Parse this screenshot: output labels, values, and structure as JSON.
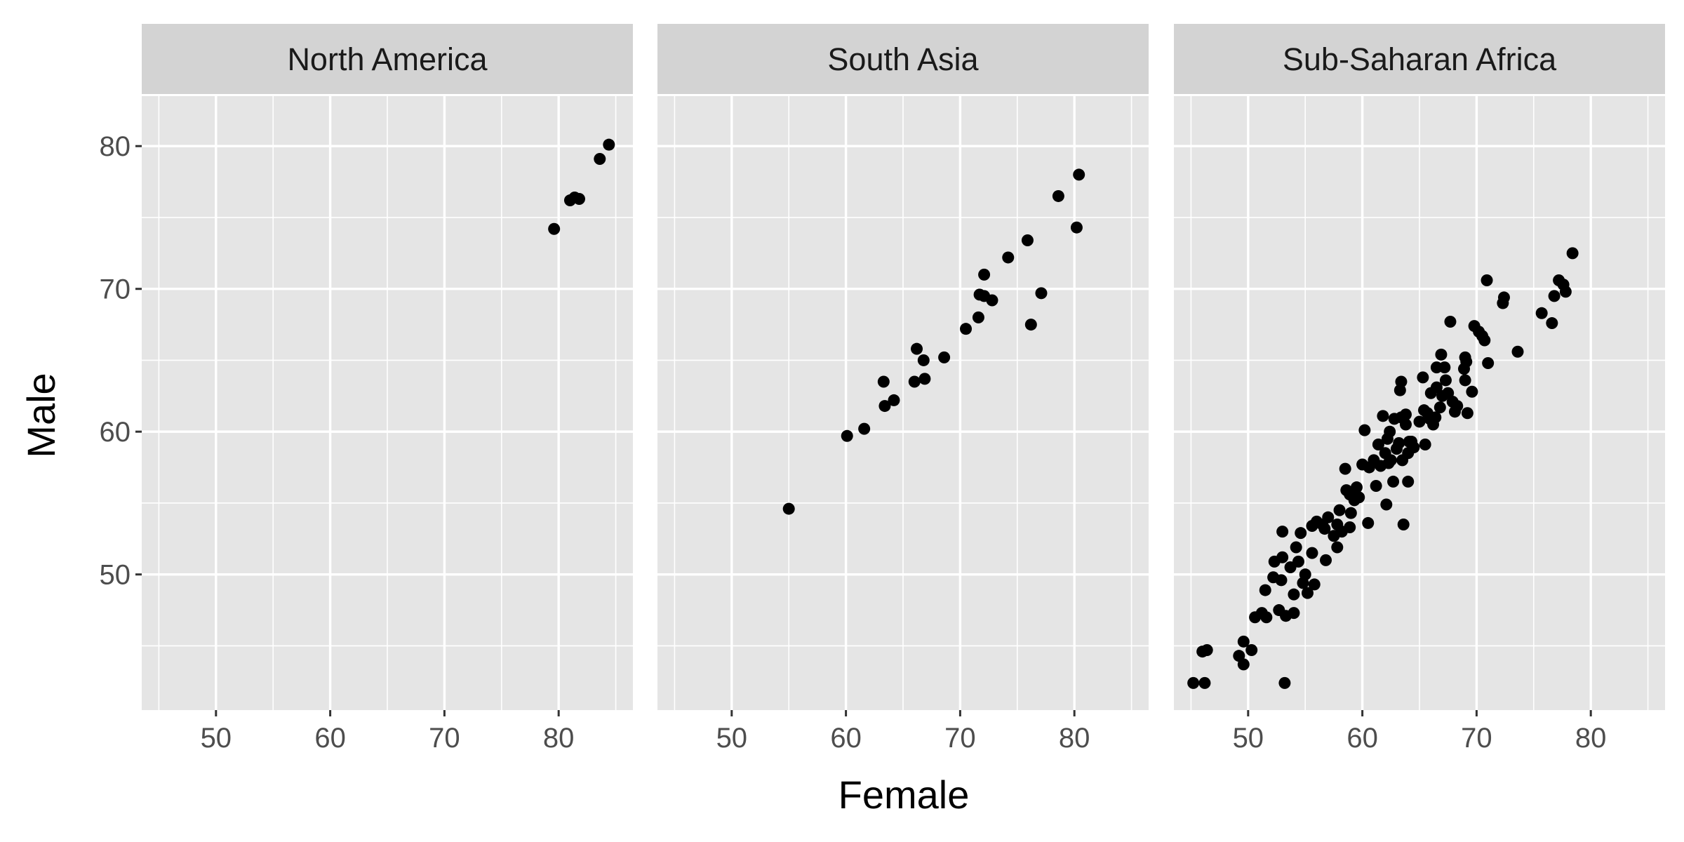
{
  "chart_data": {
    "type": "scatter",
    "xlabel": "Female",
    "ylabel": "Male",
    "xlim": [
      43.5,
      86.5
    ],
    "ylim": [
      40.5,
      83.5
    ],
    "x_ticks": [
      50,
      60,
      70,
      80
    ],
    "y_ticks": [
      50,
      60,
      70,
      80
    ],
    "grid": true,
    "colors": {
      "panel_bg": "#e5e5e5",
      "strip_bg": "#d3d3d3",
      "grid": "#ffffff",
      "point": "#000000"
    },
    "panels": [
      {
        "title": "North America",
        "points": [
          [
            79.6,
            74.2
          ],
          [
            81.0,
            76.2
          ],
          [
            81.8,
            76.3
          ],
          [
            81.4,
            76.4
          ],
          [
            83.6,
            79.1
          ],
          [
            84.4,
            80.1
          ]
        ]
      },
      {
        "title": "South Asia",
        "points": [
          [
            55.0,
            54.6
          ],
          [
            60.1,
            59.7
          ],
          [
            61.6,
            60.2
          ],
          [
            63.4,
            61.8
          ],
          [
            63.3,
            63.5
          ],
          [
            64.2,
            62.2
          ],
          [
            66.0,
            63.5
          ],
          [
            66.2,
            65.8
          ],
          [
            66.8,
            65.0
          ],
          [
            66.9,
            63.7
          ],
          [
            68.6,
            65.2
          ],
          [
            70.5,
            67.2
          ],
          [
            71.6,
            68.0
          ],
          [
            71.7,
            69.6
          ],
          [
            72.1,
            69.5
          ],
          [
            72.1,
            71.0
          ],
          [
            72.8,
            69.2
          ],
          [
            74.2,
            72.2
          ],
          [
            75.9,
            73.4
          ],
          [
            76.2,
            67.5
          ],
          [
            77.1,
            69.7
          ],
          [
            78.6,
            76.5
          ],
          [
            80.2,
            74.3
          ],
          [
            80.4,
            78.0
          ]
        ]
      },
      {
        "title": "Sub-Saharan Africa",
        "points": [
          [
            45.2,
            42.4
          ],
          [
            46.2,
            42.4
          ],
          [
            46.0,
            44.6
          ],
          [
            46.4,
            44.7
          ],
          [
            49.2,
            44.3
          ],
          [
            49.6,
            43.7
          ],
          [
            49.6,
            45.3
          ],
          [
            50.3,
            44.7
          ],
          [
            50.6,
            47.0
          ],
          [
            51.2,
            47.3
          ],
          [
            51.5,
            48.9
          ],
          [
            51.6,
            47.0
          ],
          [
            52.2,
            49.8
          ],
          [
            52.3,
            50.9
          ],
          [
            52.7,
            47.5
          ],
          [
            52.9,
            49.6
          ],
          [
            53.0,
            51.2
          ],
          [
            53.0,
            53.0
          ],
          [
            53.2,
            42.4
          ],
          [
            53.3,
            47.1
          ],
          [
            53.7,
            50.5
          ],
          [
            54.0,
            48.6
          ],
          [
            54.0,
            47.3
          ],
          [
            54.2,
            51.9
          ],
          [
            54.4,
            50.9
          ],
          [
            54.6,
            52.9
          ],
          [
            54.8,
            49.4
          ],
          [
            55.0,
            50.0
          ],
          [
            55.2,
            48.7
          ],
          [
            55.6,
            53.4
          ],
          [
            55.6,
            51.5
          ],
          [
            55.8,
            49.3
          ],
          [
            56.0,
            53.7
          ],
          [
            56.5,
            53.5
          ],
          [
            56.7,
            53.2
          ],
          [
            56.8,
            51.0
          ],
          [
            57.0,
            54.0
          ],
          [
            57.5,
            52.7
          ],
          [
            57.8,
            51.9
          ],
          [
            57.8,
            53.5
          ],
          [
            58.0,
            54.5
          ],
          [
            58.2,
            53.0
          ],
          [
            58.5,
            57.4
          ],
          [
            58.6,
            55.9
          ],
          [
            58.9,
            53.3
          ],
          [
            58.9,
            55.6
          ],
          [
            59.0,
            54.3
          ],
          [
            59.3,
            55.2
          ],
          [
            59.5,
            56.1
          ],
          [
            59.7,
            55.4
          ],
          [
            60.0,
            57.7
          ],
          [
            60.2,
            60.1
          ],
          [
            60.5,
            53.6
          ],
          [
            60.6,
            57.5
          ],
          [
            61.0,
            58.0
          ],
          [
            61.2,
            56.2
          ],
          [
            61.4,
            59.1
          ],
          [
            61.6,
            57.6
          ],
          [
            61.8,
            61.1
          ],
          [
            62.0,
            58.5
          ],
          [
            62.1,
            54.9
          ],
          [
            62.2,
            59.5
          ],
          [
            62.3,
            57.8
          ],
          [
            62.4,
            60.0
          ],
          [
            62.5,
            58.0
          ],
          [
            62.7,
            56.5
          ],
          [
            62.8,
            60.9
          ],
          [
            63.0,
            58.8
          ],
          [
            63.2,
            59.2
          ],
          [
            63.3,
            62.9
          ],
          [
            63.4,
            61.0
          ],
          [
            63.4,
            63.5
          ],
          [
            63.5,
            58.0
          ],
          [
            63.6,
            53.5
          ],
          [
            63.8,
            61.2
          ],
          [
            63.8,
            60.5
          ],
          [
            64.0,
            56.5
          ],
          [
            64.0,
            58.5
          ],
          [
            64.1,
            59.3
          ],
          [
            64.3,
            59.3
          ],
          [
            64.5,
            58.9
          ],
          [
            65.0,
            60.7
          ],
          [
            65.3,
            63.8
          ],
          [
            65.4,
            61.5
          ],
          [
            65.5,
            59.1
          ],
          [
            65.7,
            61.3
          ],
          [
            65.9,
            60.9
          ],
          [
            66.0,
            62.7
          ],
          [
            66.2,
            60.5
          ],
          [
            66.4,
            61.0
          ],
          [
            66.5,
            63.1
          ],
          [
            66.5,
            64.5
          ],
          [
            66.8,
            61.7
          ],
          [
            66.9,
            65.4
          ],
          [
            67.0,
            62.5
          ],
          [
            67.2,
            64.5
          ],
          [
            67.3,
            63.6
          ],
          [
            67.5,
            62.7
          ],
          [
            67.7,
            67.7
          ],
          [
            67.9,
            62.1
          ],
          [
            68.1,
            61.4
          ],
          [
            68.3,
            61.8
          ],
          [
            68.9,
            64.4
          ],
          [
            69.0,
            65.2
          ],
          [
            69.0,
            63.6
          ],
          [
            69.1,
            64.9
          ],
          [
            69.2,
            61.3
          ],
          [
            69.6,
            62.8
          ],
          [
            69.8,
            67.4
          ],
          [
            70.2,
            67.0
          ],
          [
            70.5,
            66.7
          ],
          [
            70.7,
            66.4
          ],
          [
            70.9,
            70.6
          ],
          [
            71.0,
            64.8
          ],
          [
            72.3,
            69.0
          ],
          [
            72.4,
            69.4
          ],
          [
            73.6,
            65.6
          ],
          [
            75.7,
            68.3
          ],
          [
            76.6,
            67.6
          ],
          [
            76.8,
            69.5
          ],
          [
            77.2,
            70.6
          ],
          [
            77.6,
            70.3
          ],
          [
            77.8,
            69.8
          ],
          [
            78.4,
            72.5
          ]
        ]
      }
    ]
  }
}
